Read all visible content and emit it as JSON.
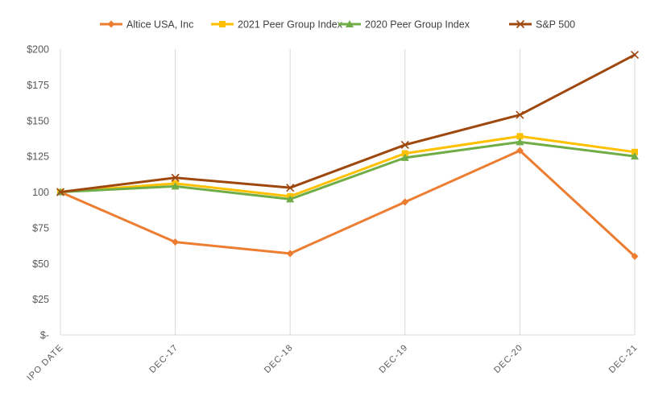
{
  "chart_data": {
    "type": "line",
    "title": "",
    "xlabel": "",
    "ylabel": "",
    "categories": [
      "IPO DATE",
      "DEC-17",
      "DEC-18",
      "DEC-19",
      "DEC-20",
      "DEC-21"
    ],
    "ylim": [
      0,
      200
    ],
    "yticks": [
      0,
      25,
      50,
      75,
      100,
      125,
      150,
      175,
      200
    ],
    "ytick_labels": [
      "$-",
      "$25",
      "$50",
      "$75",
      "100",
      "$125",
      "$150",
      "$175",
      "$200"
    ],
    "grid": "vertical",
    "legend_position": "top",
    "series": [
      {
        "name": "Altice USA, Inc",
        "color": "#ED7D31",
        "marker": "diamond",
        "values": [
          100,
          65,
          57,
          93,
          129,
          55
        ]
      },
      {
        "name": "2021 Peer Group Index",
        "color": "#FFC000",
        "marker": "square",
        "values": [
          100,
          106,
          97,
          127,
          139,
          128
        ]
      },
      {
        "name": "2020 Peer Group Index",
        "color": "#70AD47",
        "marker": "triangle",
        "values": [
          100,
          104,
          95,
          124,
          135,
          125
        ]
      },
      {
        "name": "S&P 500",
        "color": "#9E480E",
        "marker": "x",
        "values": [
          100,
          110,
          103,
          133,
          154,
          196
        ]
      }
    ]
  }
}
